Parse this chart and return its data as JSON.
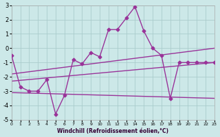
{
  "bg_color": "#cce8e8",
  "grid_color": "#aacccc",
  "line_color": "#993399",
  "xlim": [
    0,
    23
  ],
  "ylim": [
    -5,
    3
  ],
  "xticks": [
    0,
    1,
    2,
    3,
    4,
    5,
    6,
    7,
    8,
    9,
    10,
    11,
    12,
    13,
    14,
    15,
    16,
    17,
    18,
    19,
    20,
    21,
    22,
    23
  ],
  "yticks": [
    -5,
    -4,
    -3,
    -2,
    -1,
    0,
    1,
    2,
    3
  ],
  "xlabel": "Windchill (Refroidissement éolien,°C)",
  "series_main": {
    "x": [
      0,
      1,
      2,
      3,
      4,
      5,
      6,
      7,
      8,
      9,
      10,
      11,
      12,
      13,
      14,
      15,
      16,
      17,
      18,
      19,
      20,
      21,
      22,
      23
    ],
    "y": [
      -0.5,
      -2.7,
      -3.0,
      -3.0,
      -2.2,
      -4.6,
      -3.3,
      -0.8,
      -1.1,
      -0.3,
      -0.6,
      1.3,
      1.3,
      2.1,
      2.9,
      1.2,
      0.0,
      -0.5,
      -3.5,
      -1.0,
      -1.0,
      -1.0,
      -1.0,
      -1.0
    ]
  },
  "series_linear": [
    {
      "x": [
        0,
        23
      ],
      "y": [
        -2.3,
        -1.0
      ]
    },
    {
      "x": [
        0,
        23
      ],
      "y": [
        -3.1,
        -3.5
      ]
    },
    {
      "x": [
        0,
        23
      ],
      "y": [
        -1.8,
        0.0
      ]
    }
  ]
}
